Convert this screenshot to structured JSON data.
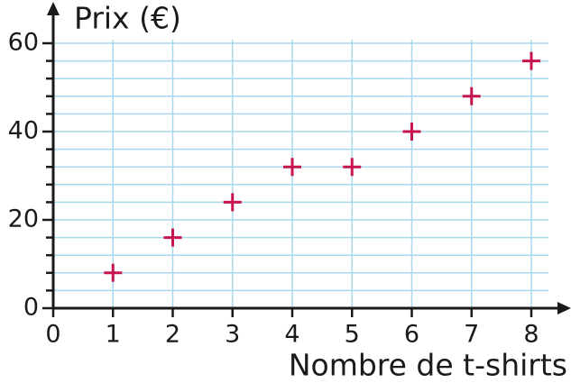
{
  "chart_data": {
    "type": "scatter",
    "y_label": "Prix (€)",
    "x_label": "Nombre de t-shirts",
    "x": [
      1,
      2,
      3,
      4,
      5,
      6,
      7,
      8
    ],
    "values": [
      8,
      16,
      24,
      32,
      32,
      40,
      48,
      56
    ],
    "color": "#c8144e",
    "grid_color": "#a8d8ee",
    "xlim": [
      0,
      8
    ],
    "ylim": [
      0,
      60
    ],
    "xticks": [
      0,
      1,
      2,
      3,
      4,
      5,
      6,
      7,
      8
    ],
    "yticks": [
      0,
      20,
      40,
      60
    ],
    "yminor_ticks": [
      4,
      8,
      12,
      16,
      24,
      28,
      32,
      36,
      44,
      48,
      52,
      56
    ],
    "grid": true
  }
}
